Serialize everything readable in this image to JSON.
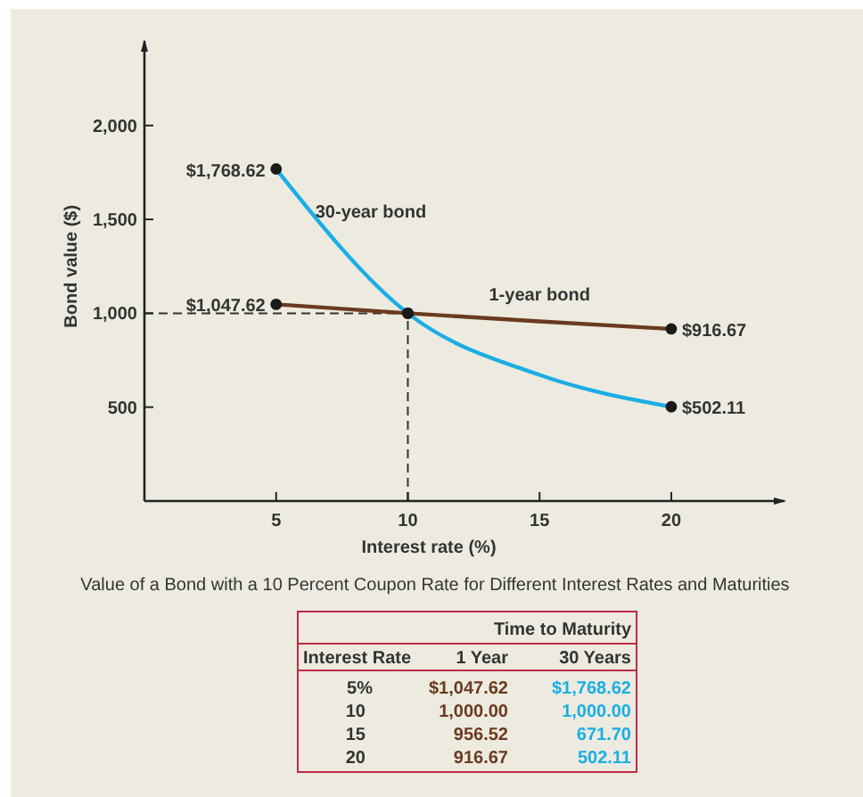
{
  "chart_data": {
    "type": "line",
    "xlabel": "Interest rate (%)",
    "ylabel": "Bond value ($)",
    "x": [
      5,
      10,
      15,
      20
    ],
    "xlim": [
      0,
      24.3
    ],
    "xticks": [
      5,
      10,
      15,
      20
    ],
    "ylim": [
      0,
      2450
    ],
    "yticks": [
      {
        "value": 500,
        "label": "500"
      },
      {
        "value": 1000,
        "label": "1,000"
      },
      {
        "value": 1500,
        "label": "1,500"
      },
      {
        "value": 2000,
        "label": "2,000"
      }
    ],
    "series": [
      {
        "name": "30-year bond",
        "color": "#1aaee5",
        "values": [
          1768.62,
          1000,
          671.7,
          502.11
        ],
        "value_labels": [
          "$1,768.62",
          null,
          null,
          "$502.11"
        ]
      },
      {
        "name": "1-year bond",
        "color": "#6b3a1e",
        "values": [
          1047.62,
          1000,
          956.52,
          916.67
        ],
        "value_labels": [
          "$1,047.62",
          null,
          null,
          "$916.67"
        ]
      }
    ],
    "ref_lines": [
      {
        "axis": "y",
        "value": 1000,
        "line_style": "dashed",
        "color": "#333333"
      },
      {
        "axis": "x",
        "value": 10,
        "line_style": "dashed",
        "color": "#333333"
      }
    ],
    "marker": "circle",
    "grid": false,
    "line_style": "solid",
    "annotations": [
      "Value of a Bond with a 10 Percent Coupon Rate for Different Interest Rates and Maturities",
      "Time to Maturity",
      "Interest Rate",
      "1 Year",
      "30 Years",
      "5%",
      "$1,047.62",
      "$1,768.62",
      "10",
      "1,000.00",
      "1,000.00",
      "15",
      "956.52",
      "671.70",
      "20",
      "916.67",
      "502.11"
    ]
  }
}
